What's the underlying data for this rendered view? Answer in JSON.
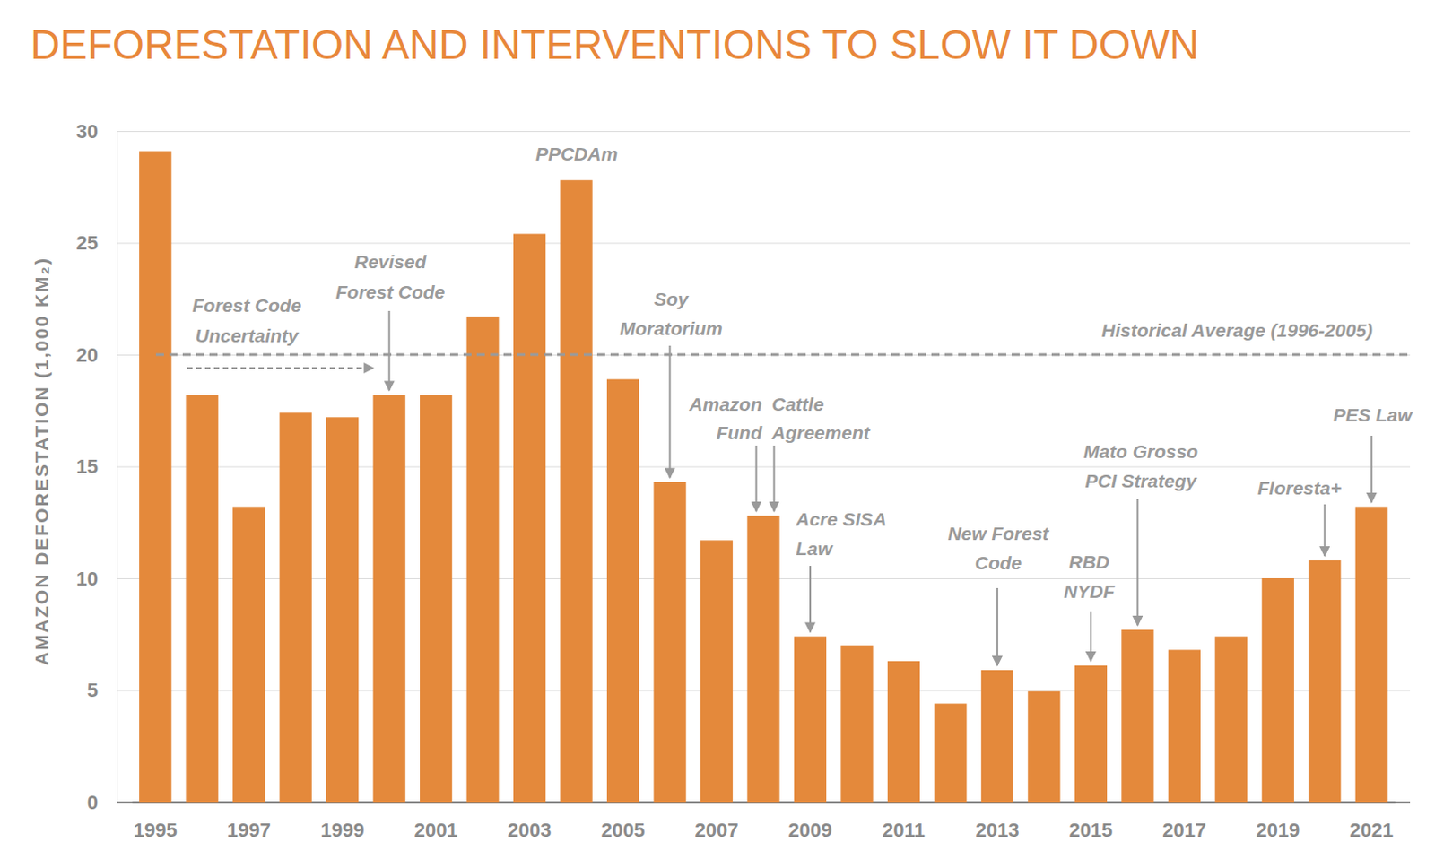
{
  "chart_data": {
    "type": "bar",
    "title": "DEFORESTATION AND INTERVENTIONS TO SLOW IT DOWN",
    "y_label": "AMAZON DEFORESTATION (1,000 KM₂)",
    "categories": [
      "1995",
      null,
      "1997",
      null,
      "1999",
      null,
      "2001",
      null,
      "2003",
      null,
      "2005",
      null,
      "2007",
      null,
      "2009",
      null,
      "2011",
      null,
      "2013",
      null,
      "2015",
      null,
      "2017",
      null,
      "2019",
      null,
      "2021"
    ],
    "values": [
      29.1,
      18.2,
      13.2,
      17.4,
      17.2,
      18.2,
      18.2,
      21.7,
      25.4,
      27.8,
      18.9,
      14.3,
      11.7,
      12.8,
      7.4,
      7.0,
      6.3,
      4.4,
      5.9,
      4.95,
      6.1,
      7.7,
      6.8,
      7.4,
      10.0,
      10.8,
      13.2
    ],
    "color": "#e4893b",
    "ylim": [
      0,
      30
    ],
    "yticks": [
      0,
      5,
      10,
      15,
      20,
      25,
      30
    ],
    "grid": true,
    "reference_line": {
      "value": 20,
      "label": "Historical Average (1996-2005)"
    },
    "annotations": [
      {
        "lines": [
          "Forest Code",
          "Uncertainty"
        ]
      },
      {
        "lines": [
          "Revised",
          "Forest Code"
        ]
      },
      {
        "lines": [
          "PPCDAm"
        ]
      },
      {
        "lines": [
          "Soy",
          "Moratorium"
        ]
      },
      {
        "lines": [
          "Amazon",
          "Fund"
        ]
      },
      {
        "lines": [
          "Cattle",
          "Agreement"
        ]
      },
      {
        "lines": [
          "Acre SISA",
          "Law"
        ]
      },
      {
        "lines": [
          "New Forest",
          "Code"
        ]
      },
      {
        "lines": [
          "RBD",
          "NYDF"
        ]
      },
      {
        "lines": [
          "Mato Grosso",
          "PCI Strategy"
        ]
      },
      {
        "lines": [
          "Floresta+"
        ]
      },
      {
        "lines": [
          "PES Law"
        ]
      }
    ]
  }
}
